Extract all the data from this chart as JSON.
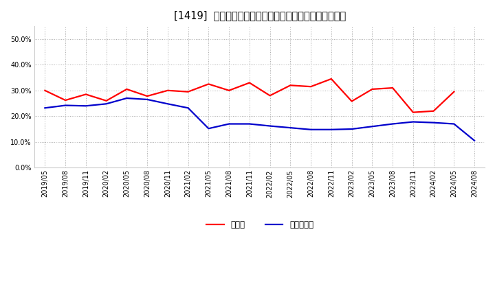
{
  "title": "[1419]  現顔金、有利子負債の総資産に対する比率の推移",
  "dates": [
    "2019/05",
    "2019/08",
    "2019/11",
    "2020/02",
    "2020/05",
    "2020/08",
    "2020/11",
    "2021/02",
    "2021/05",
    "2021/08",
    "2021/11",
    "2022/02",
    "2022/05",
    "2022/08",
    "2022/11",
    "2023/02",
    "2023/05",
    "2023/08",
    "2023/11",
    "2024/02",
    "2024/05",
    "2024/08"
  ],
  "cash": [
    0.3,
    0.262,
    0.285,
    0.26,
    0.305,
    0.278,
    0.3,
    0.295,
    0.325,
    0.3,
    0.33,
    0.28,
    0.32,
    0.315,
    0.345,
    0.258,
    0.305,
    0.31,
    0.215,
    0.22,
    0.295,
    null
  ],
  "debt": [
    0.232,
    0.242,
    0.24,
    0.248,
    0.27,
    0.265,
    0.248,
    0.232,
    0.152,
    0.17,
    0.17,
    0.162,
    0.155,
    0.148,
    0.148,
    0.15,
    0.16,
    0.17,
    0.178,
    0.175,
    0.17,
    0.105
  ],
  "cash_color": "#ff0000",
  "debt_color": "#0000cc",
  "background_color": "#ffffff",
  "plot_bg_color": "#ffffff",
  "ylim": [
    0.0,
    0.55
  ],
  "yticks": [
    0.0,
    0.1,
    0.2,
    0.3,
    0.4,
    0.5
  ],
  "legend_cash": "現顔金",
  "legend_debt": "有利子負債",
  "title_fontsize": 10.5,
  "tick_fontsize": 7,
  "legend_fontsize": 8.5,
  "linewidth": 1.6
}
